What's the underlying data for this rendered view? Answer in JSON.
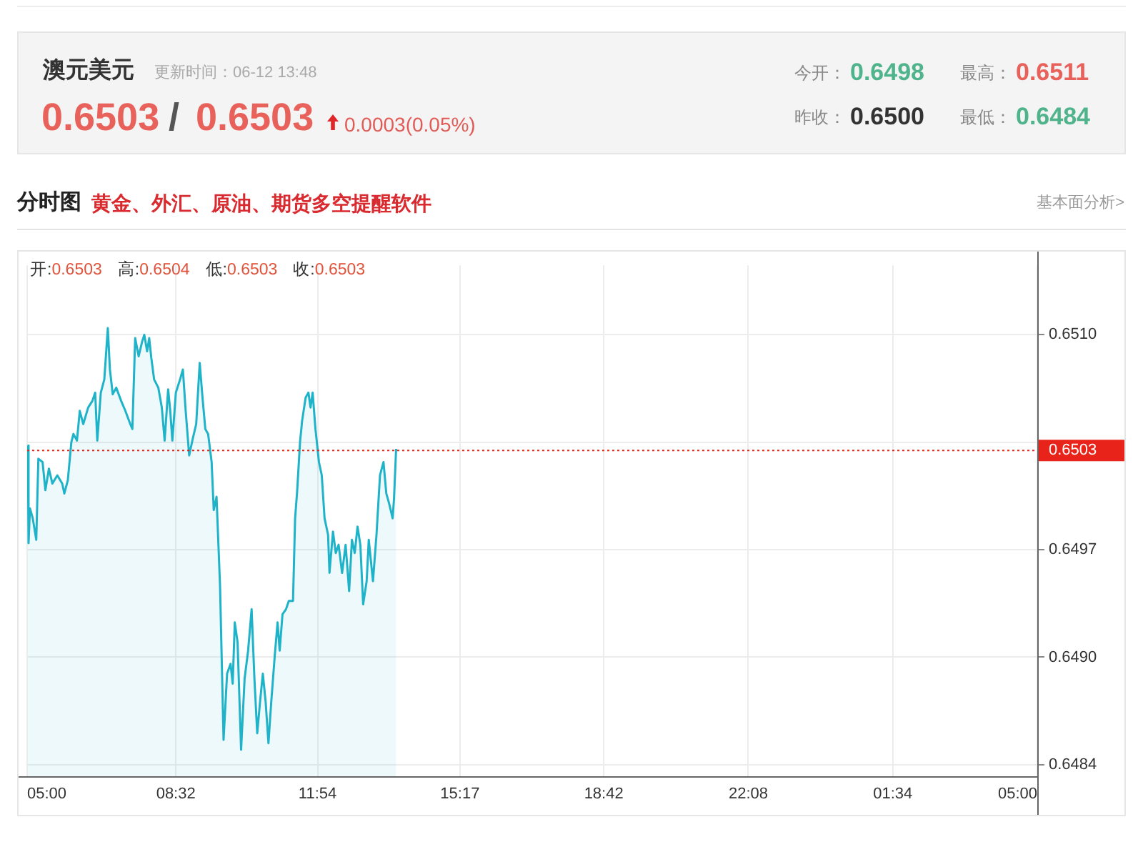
{
  "chart_data": {
    "type": "area",
    "title": "澳元美元",
    "annotations": [
      "更新时间：06-12 13:48",
      "0.6503",
      "/",
      "0.6503",
      "0.0003(0.05%)",
      "今开：",
      "0.6498",
      "最高：",
      "0.6511",
      "昨收：",
      "0.6500",
      "最低：",
      "0.6484",
      "分时图",
      "黄金、外汇、原油、期货多空提醒软件",
      "基本面分析>",
      "开:",
      "0.6503",
      "高:",
      "0.6504",
      "低:",
      "0.6503",
      "收:",
      "0.6503"
    ],
    "x": [
      "--06-12T05:01",
      "--06-12T05:02",
      "--06-12T05:04",
      "--06-12T05:08",
      "--06-12T05:13",
      "--06-12T05:16",
      "--06-12T05:22",
      "--06-12T05:26",
      "--06-12T05:31",
      "--06-12T05:36",
      "--06-12T05:43",
      "--06-12T05:50",
      "--06-12T05:53",
      "--06-12T05:58",
      "--06-12T06:03",
      "--06-12T06:06",
      "--06-12T06:11",
      "--06-12T06:15",
      "--06-12T06:20",
      "--06-12T06:27",
      "--06-12T06:33",
      "--06-12T06:37",
      "--06-12T06:40",
      "--06-12T06:45",
      "--06-12T06:50",
      "--06-12T06:55",
      "--06-12T06:58",
      "--06-12T07:02",
      "--06-12T07:07",
      "--06-12T07:14",
      "--06-12T07:20",
      "--06-12T07:27",
      "--06-12T07:30",
      "--06-12T07:34",
      "--06-12T07:39",
      "--06-12T07:44",
      "--06-12T07:47",
      "--06-12T07:51",
      "--06-12T07:54",
      "--06-12T07:57",
      "--06-12T08:01",
      "--06-12T08:07",
      "--06-12T08:12",
      "--06-12T08:16",
      "--06-12T08:21",
      "--06-12T08:24",
      "--06-12T08:27",
      "--06-12T08:32",
      "--06-12T08:38",
      "--06-12T08:42",
      "--06-12T08:46",
      "--06-12T08:51",
      "--06-12T08:56",
      "--06-12T09:01",
      "--06-12T09:06",
      "--06-12T09:10",
      "--06-12T09:14",
      "--06-12T09:18",
      "--06-12T09:23",
      "--06-12T09:26",
      "--06-12T09:30",
      "--06-12T09:35",
      "--06-12T09:40",
      "--06-12T09:45",
      "--06-12T09:50",
      "--06-12T09:53",
      "--06-12T09:56",
      "--06-12T10:00",
      "--06-12T10:05",
      "--06-12T10:10",
      "--06-12T10:15",
      "--06-12T10:20",
      "--06-12T10:24",
      "--06-12T10:28",
      "--06-12T10:32",
      "--06-12T10:36",
      "--06-12T10:40",
      "--06-12T10:44",
      "--06-12T10:48",
      "--06-12T10:53",
      "--06-12T10:57",
      "--06-12T11:00",
      "--06-12T11:04",
      "--06-12T11:09",
      "--06-12T11:13",
      "--06-12T11:19",
      "--06-12T11:22",
      "--06-12T11:25",
      "--06-12T11:29",
      "--06-12T11:32",
      "--06-12T11:37",
      "--06-12T11:41",
      "--06-12T11:44",
      "--06-12T11:47",
      "--06-12T11:51",
      "--06-12T11:56",
      "--06-12T12:00",
      "--06-12T12:04",
      "--06-12T12:09",
      "--06-12T12:11",
      "--06-12T12:16",
      "--06-12T12:20",
      "--06-12T12:24",
      "--06-12T12:29",
      "--06-12T12:34",
      "--06-12T12:39",
      "--06-12T12:43",
      "--06-12T12:47",
      "--06-12T12:51",
      "--06-12T12:55",
      "--06-12T12:59",
      "--06-12T13:04",
      "--06-12T13:07",
      "--06-12T13:13",
      "--06-12T13:18",
      "--06-12T13:23",
      "--06-12T13:28",
      "--06-12T13:32",
      "--06-12T13:36",
      "--06-12T13:41",
      "--06-12T13:43",
      "--06-12T13:46"
    ],
    "series": [
      {
        "color": "#1fb3c9",
        "values": [
          0.65033,
          0.64974,
          0.64995,
          0.64989,
          0.64976,
          0.65025,
          0.65023,
          0.65006,
          0.65019,
          0.6501,
          0.65015,
          0.6501,
          0.65004,
          0.65012,
          0.65035,
          0.6504,
          0.65036,
          0.65054,
          0.65046,
          0.65056,
          0.6506,
          0.65065,
          0.65036,
          0.65065,
          0.65073,
          0.65104,
          0.65079,
          0.65064,
          0.65068,
          0.6506,
          0.65054,
          0.65046,
          0.65043,
          0.65098,
          0.65087,
          0.65096,
          0.651,
          0.6509,
          0.65098,
          0.65086,
          0.65073,
          0.65068,
          0.65056,
          0.65036,
          0.65067,
          0.65054,
          0.65036,
          0.65065,
          0.65073,
          0.65079,
          0.65054,
          0.65027,
          0.65037,
          0.65046,
          0.65083,
          0.65062,
          0.65043,
          0.6504,
          0.65023,
          0.64994,
          0.65002,
          0.64948,
          0.64855,
          0.64895,
          0.64901,
          0.64889,
          0.64926,
          0.64914,
          0.64849,
          0.64892,
          0.64909,
          0.64934,
          0.64892,
          0.64859,
          0.64878,
          0.64895,
          0.64878,
          0.64853,
          0.64878,
          0.64906,
          0.64926,
          0.64909,
          0.64931,
          0.64934,
          0.64939,
          0.64939,
          0.64989,
          0.65006,
          0.65035,
          0.65048,
          0.65062,
          0.65065,
          0.65056,
          0.65065,
          0.65043,
          0.65023,
          0.65015,
          0.64989,
          0.64979,
          0.64956,
          0.64981,
          0.64968,
          0.64973,
          0.64956,
          0.64973,
          0.64945,
          0.64976,
          0.64968,
          0.64984,
          0.64973,
          0.64937,
          0.64951,
          0.64976,
          0.64951,
          0.64979,
          0.65015,
          0.65023,
          0.65004,
          0.64998,
          0.64989,
          0.65001,
          0.65031
        ]
      }
    ],
    "xlim": [
      "--06-12T05:00",
      "--06-13T05:00"
    ],
    "xticks": [
      {
        "value": "--06-12T05:00",
        "label": "05:00"
      },
      {
        "value": "--06-12T08:32",
        "label": "08:32"
      },
      {
        "value": "--06-12T11:54",
        "label": "11:54"
      },
      {
        "value": "--06-12T15:17",
        "label": "15:17"
      },
      {
        "value": "--06-12T18:42",
        "label": "18:42"
      },
      {
        "value": "--06-12T22:08",
        "label": "22:08"
      },
      {
        "value": "--06-13T01:34",
        "label": "01:34"
      },
      {
        "value": "--06-13T05:00",
        "label": "05:00"
      }
    ],
    "ylim": [
      0.64833,
      0.65142
    ],
    "yticks": [
      0.6484,
      {
        "value": 0.64905,
        "label": "0.6490"
      },
      0.6497,
      {
        "value": 0.65035,
        "label": null
      },
      {
        "value": 0.651,
        "label": "0.6510"
      }
    ],
    "grid": true,
    "marker": "none",
    "ref_lines": [
      {
        "axis": "y",
        "value": 0.6503,
        "label": "0.6503",
        "color": "#e8231a",
        "line_style": "dotted"
      }
    ]
  }
}
